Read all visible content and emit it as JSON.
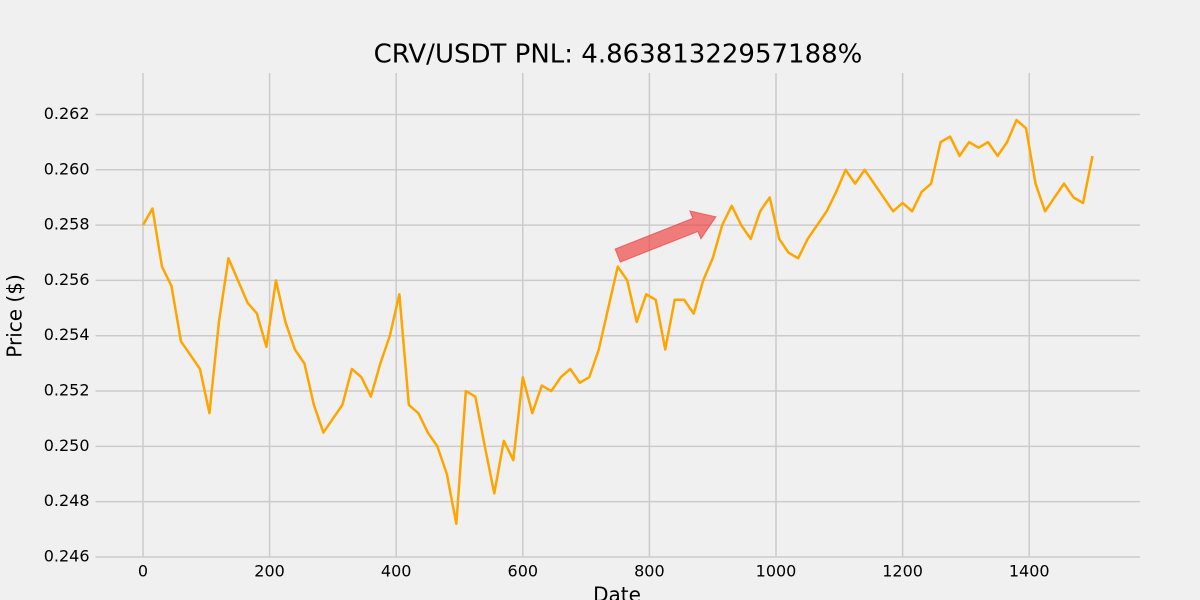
{
  "chart_data": {
    "type": "line",
    "title": "CRV/USDT  PNL: 4.86381322957188%",
    "xlabel": "Date",
    "ylabel": "Price ($)",
    "x": [
      0,
      15,
      30,
      45,
      60,
      75,
      90,
      105,
      120,
      135,
      150,
      165,
      180,
      195,
      210,
      225,
      240,
      255,
      270,
      285,
      300,
      315,
      330,
      345,
      360,
      375,
      390,
      405,
      420,
      435,
      450,
      465,
      480,
      495,
      510,
      525,
      540,
      555,
      570,
      585,
      600,
      615,
      630,
      645,
      660,
      675,
      690,
      705,
      720,
      735,
      750,
      765,
      780,
      795,
      810,
      825,
      840,
      855,
      870,
      885,
      900,
      915,
      930,
      945,
      960,
      975,
      990,
      1005,
      1020,
      1035,
      1050,
      1065,
      1080,
      1095,
      1110,
      1125,
      1140,
      1155,
      1170,
      1185,
      1200,
      1215,
      1230,
      1245,
      1260,
      1275,
      1290,
      1305,
      1320,
      1335,
      1350,
      1365,
      1380,
      1395,
      1410,
      1425,
      1440,
      1455,
      1470,
      1485,
      1500
    ],
    "series": [
      {
        "name": "CRV/USDT",
        "color": "#ffa500",
        "values": [
          0.258,
          0.2586,
          0.2565,
          0.2558,
          0.2538,
          0.2533,
          0.2528,
          0.2512,
          0.2545,
          0.2568,
          0.256,
          0.2552,
          0.2548,
          0.2536,
          0.256,
          0.2545,
          0.2535,
          0.253,
          0.2515,
          0.2505,
          0.251,
          0.2515,
          0.2528,
          0.2525,
          0.2518,
          0.253,
          0.254,
          0.2555,
          0.2515,
          0.2512,
          0.2505,
          0.25,
          0.249,
          0.2472,
          0.252,
          0.2518,
          0.25,
          0.2483,
          0.2502,
          0.2495,
          0.2525,
          0.2512,
          0.2522,
          0.252,
          0.2525,
          0.2528,
          0.2523,
          0.2525,
          0.2535,
          0.255,
          0.2565,
          0.256,
          0.2545,
          0.2555,
          0.2553,
          0.2535,
          0.2553,
          0.2553,
          0.2548,
          0.256,
          0.2568,
          0.258,
          0.2587,
          0.258,
          0.2575,
          0.2585,
          0.259,
          0.2575,
          0.257,
          0.2568,
          0.2575,
          0.258,
          0.2585,
          0.2592,
          0.26,
          0.2595,
          0.26,
          0.2595,
          0.259,
          0.2585,
          0.2588,
          0.2585,
          0.2592,
          0.2595,
          0.261,
          0.2612,
          0.2605,
          0.261,
          0.2608,
          0.261,
          0.2605,
          0.261,
          0.2618,
          0.2615,
          0.2595,
          0.2585,
          0.259,
          0.2595,
          0.259,
          0.2588,
          0.2605
        ]
      }
    ],
    "arrow": {
      "x": [
        750,
        905
      ],
      "y": [
        0.2569,
        0.2583
      ],
      "color": "#f03c3c"
    },
    "xlim": [
      -75,
      1575
    ],
    "ylim": [
      0.246,
      0.2635
    ],
    "xticks": [
      0,
      200,
      400,
      600,
      800,
      1000,
      1200,
      1400
    ],
    "yticks": [
      0.246,
      0.248,
      {
        "value": 0.25,
        "label": "0.250"
      },
      0.252,
      0.254,
      0.256,
      0.258,
      {
        "value": 0.26,
        "label": "0.260"
      },
      0.262
    ],
    "grid": true
  }
}
